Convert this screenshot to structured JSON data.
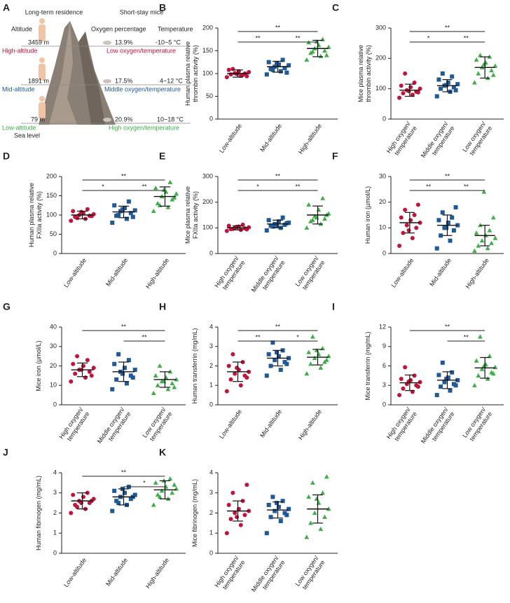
{
  "figure_a": {
    "label": "A",
    "headers": {
      "human": "Long-term residence",
      "mice": "Short-stay mice",
      "altitude": "Altitude",
      "oxygen": "Oxygen percentage",
      "temperature": "Temperature"
    },
    "rows": [
      {
        "altitude": "3459 m",
        "name": "High-altitude",
        "oxygen": "13.9%",
        "temperature": "-10~5 °C",
        "condition": "Low oxygen/temperature"
      },
      {
        "altitude": "1891 m",
        "name": "Mid-altitude",
        "oxygen": "17.5%",
        "temperature": "4~12 °C",
        "condition": "Middle oxygen/temperature"
      },
      {
        "altitude": "79 m",
        "name": "Low-altitude",
        "oxygen": "20.9%",
        "temperature": "10~18 °C",
        "condition": "High oxygen/temperature"
      }
    ],
    "sea_level": "Sea level"
  },
  "chart_data": [
    {
      "type": "dotplot",
      "label": "B",
      "ylabel": [
        "Human plasma relative",
        "thrombin activity (%)"
      ],
      "categories": [
        "Low-altitude",
        "Mid-altitude",
        "High-altitude"
      ],
      "ylim": [
        0,
        200
      ],
      "yticks": [
        0,
        50,
        100,
        150,
        200
      ],
      "groups": [
        {
          "color": "#c0143c",
          "marker": "circle",
          "values": [
            92,
            95,
            98,
            100,
            101,
            103,
            105,
            108,
            97,
            110,
            94,
            99
          ],
          "mean": 100,
          "sd": 8
        },
        {
          "color": "#1f5a96",
          "marker": "square",
          "values": [
            98,
            105,
            110,
            112,
            115,
            118,
            120,
            125,
            130,
            108,
            102,
            122
          ],
          "mean": 115,
          "sd": 12
        },
        {
          "color": "#3fae49",
          "marker": "triangle",
          "values": [
            130,
            138,
            145,
            150,
            155,
            158,
            162,
            168,
            175,
            148,
            140,
            170
          ],
          "mean": 155,
          "sd": 18
        }
      ],
      "significance": [
        {
          "from": 0,
          "to": 2,
          "label": "**"
        },
        {
          "from": 0,
          "to": 1,
          "label": "**"
        },
        {
          "from": 1,
          "to": 2,
          "label": "**"
        }
      ]
    },
    {
      "type": "dotplot",
      "label": "C",
      "ylabel": [
        "Mice plasma relative",
        "thrombin activity (%)"
      ],
      "categories": [
        [
          "High oxygen/",
          "temperature"
        ],
        [
          "Middle oxygen/",
          "temperature"
        ],
        [
          "Low oxygen/",
          "temperature"
        ]
      ],
      "ylim": [
        0,
        300
      ],
      "yticks": [
        0,
        100,
        200,
        300
      ],
      "groups": [
        {
          "color": "#c0143c",
          "marker": "circle",
          "values": [
            70,
            80,
            85,
            90,
            95,
            100,
            105,
            110,
            120,
            150,
            88,
            92
          ],
          "mean": 95,
          "sd": 20
        },
        {
          "color": "#1f5a96",
          "marker": "square",
          "values": [
            75,
            90,
            100,
            105,
            110,
            115,
            120,
            130,
            140,
            150,
            95,
            112
          ],
          "mean": 110,
          "sd": 20
        },
        {
          "color": "#3fae49",
          "marker": "triangle",
          "values": [
            120,
            135,
            150,
            160,
            170,
            175,
            185,
            195,
            205,
            210,
            145,
            180
          ],
          "mean": 170,
          "sd": 35
        }
      ],
      "significance": [
        {
          "from": 0,
          "to": 2,
          "label": "**"
        },
        {
          "from": 0,
          "to": 1,
          "label": "*"
        },
        {
          "from": 1,
          "to": 2,
          "label": "**"
        }
      ]
    },
    {
      "type": "dotplot",
      "label": "D",
      "ylabel": [
        "Human plasma relative",
        "FXIIa activity (%)"
      ],
      "categories": [
        "Low-altitude",
        "Mid-altitude",
        "High-altitude"
      ],
      "ylim": [
        0,
        200
      ],
      "yticks": [
        0,
        50,
        100,
        150,
        200
      ],
      "groups": [
        {
          "color": "#c0143c",
          "marker": "circle",
          "values": [
            85,
            90,
            95,
            98,
            100,
            102,
            105,
            110,
            115,
            92,
            97,
            108
          ],
          "mean": 100,
          "sd": 10
        },
        {
          "color": "#1f5a96",
          "marker": "square",
          "values": [
            80,
            90,
            98,
            105,
            110,
            112,
            118,
            125,
            135,
            100,
            95,
            115
          ],
          "mean": 108,
          "sd": 15
        },
        {
          "color": "#3fae49",
          "marker": "triangle",
          "values": [
            110,
            120,
            130,
            140,
            148,
            155,
            160,
            170,
            185,
            125,
            145,
            165
          ],
          "mean": 148,
          "sd": 25
        }
      ],
      "significance": [
        {
          "from": 0,
          "to": 2,
          "label": "**"
        },
        {
          "from": 0,
          "to": 1,
          "label": "*"
        },
        {
          "from": 1,
          "to": 2,
          "label": "**"
        }
      ]
    },
    {
      "type": "dotplot",
      "label": "E",
      "ylabel": [
        "Mice plasma relative",
        "FXIIa activity (%)"
      ],
      "categories": [
        [
          "High oxygen/",
          "temperature"
        ],
        [
          "Middle oxygen/",
          "temperature"
        ],
        [
          "Low oxygen/",
          "temperature"
        ]
      ],
      "ylim": [
        0,
        300
      ],
      "yticks": [
        0,
        100,
        200,
        300
      ],
      "groups": [
        {
          "color": "#c0143c",
          "marker": "circle",
          "values": [
            88,
            92,
            95,
            98,
            100,
            102,
            105,
            108,
            112,
            96,
            94,
            104
          ],
          "mean": 100,
          "sd": 8
        },
        {
          "color": "#1f5a96",
          "marker": "square",
          "values": [
            90,
            100,
            108,
            112,
            115,
            120,
            125,
            130,
            140,
            105,
            118,
            110
          ],
          "mean": 115,
          "sd": 15
        },
        {
          "color": "#3fae49",
          "marker": "triangle",
          "values": [
            100,
            115,
            125,
            135,
            145,
            155,
            170,
            190,
            215,
            130,
            150,
            140
          ],
          "mean": 150,
          "sd": 35
        }
      ],
      "significance": [
        {
          "from": 0,
          "to": 2,
          "label": "**"
        },
        {
          "from": 0,
          "to": 1,
          "label": "*"
        },
        {
          "from": 1,
          "to": 2,
          "label": "**"
        }
      ]
    },
    {
      "type": "dotplot",
      "label": "F",
      "ylabel": [
        "Human iron (µmol/L)"
      ],
      "categories": [
        "Low-altitude",
        "Mid-altitude",
        "High-altitude"
      ],
      "ylim": [
        0,
        30
      ],
      "yticks": [
        0,
        10,
        20,
        30
      ],
      "groups": [
        {
          "color": "#c0143c",
          "marker": "circle",
          "values": [
            3,
            6,
            8,
            10,
            11,
            12,
            13,
            14,
            15,
            17,
            19,
            9
          ],
          "mean": 12,
          "sd": 4
        },
        {
          "color": "#1f5a96",
          "marker": "square",
          "values": [
            2,
            5,
            7,
            9,
            10,
            11,
            12,
            13,
            14,
            16,
            18,
            10
          ],
          "mean": 11,
          "sd": 4
        },
        {
          "color": "#3fae49",
          "marker": "triangle",
          "values": [
            1,
            2,
            3,
            4,
            5,
            6,
            7,
            8,
            9,
            11,
            14,
            24
          ],
          "mean": 7,
          "sd": 4
        }
      ],
      "significance": [
        {
          "from": 0,
          "to": 2,
          "label": "**"
        },
        {
          "from": 0,
          "to": 1,
          "label": "**"
        },
        {
          "from": 1,
          "to": 2,
          "label": "**"
        }
      ]
    },
    {
      "type": "dotplot",
      "label": "G",
      "ylabel": [
        "Mice iron (µmol/L)"
      ],
      "categories": [
        [
          "High oxygen/",
          "temperature"
        ],
        [
          "Middle oxygen/",
          "temperature"
        ],
        [
          "Low oxygen/",
          "temperature"
        ]
      ],
      "ylim": [
        0,
        40
      ],
      "yticks": [
        0,
        10,
        20,
        30,
        40
      ],
      "groups": [
        {
          "color": "#c0143c",
          "marker": "circle",
          "values": [
            12,
            14,
            16,
            17,
            18,
            19,
            20,
            21,
            23,
            25,
            15,
            18
          ],
          "mean": 18,
          "sd": 3.5
        },
        {
          "color": "#1f5a96",
          "marker": "square",
          "values": [
            8,
            11,
            13,
            15,
            17,
            18,
            19,
            21,
            23,
            26,
            14,
            16
          ],
          "mean": 17,
          "sd": 5
        },
        {
          "color": "#3fae49",
          "marker": "triangle",
          "values": [
            6,
            8,
            10,
            11,
            12,
            13,
            14,
            15,
            17,
            20,
            9,
            12
          ],
          "mean": 13,
          "sd": 4
        }
      ],
      "significance": [
        {
          "from": 0,
          "to": 2,
          "label": "**"
        },
        {
          "from": 1,
          "to": 2,
          "label": "**"
        }
      ]
    },
    {
      "type": "dotplot",
      "label": "H",
      "ylabel": [
        "Human transferrin (mg/mL)"
      ],
      "categories": [
        "Low-altitude",
        "Mid-altitude",
        "High-altitude"
      ],
      "ylim": [
        0,
        4
      ],
      "yticks": [
        0,
        1,
        2,
        3,
        4
      ],
      "groups": [
        {
          "color": "#c0143c",
          "marker": "circle",
          "values": [
            0.7,
            1.0,
            1.3,
            1.5,
            1.6,
            1.7,
            1.8,
            2.0,
            2.2,
            2.6,
            1.4,
            1.9
          ],
          "mean": 1.7,
          "sd": 0.5
        },
        {
          "color": "#1f5a96",
          "marker": "square",
          "values": [
            1.5,
            1.8,
            2.0,
            2.2,
            2.3,
            2.4,
            2.5,
            2.6,
            2.8,
            3.2,
            2.1,
            2.7
          ],
          "mean": 2.4,
          "sd": 0.4
        },
        {
          "color": "#3fae49",
          "marker": "triangle",
          "values": [
            1.6,
            1.9,
            2.1,
            2.2,
            2.4,
            2.5,
            2.6,
            2.7,
            2.9,
            3.5,
            2.3,
            2.8
          ],
          "mean": 2.45,
          "sd": 0.4
        }
      ],
      "significance": [
        {
          "from": 0,
          "to": 2,
          "label": "**"
        },
        {
          "from": 0,
          "to": 1,
          "label": "**"
        },
        {
          "from": 1,
          "to": 2,
          "label": "*"
        }
      ]
    },
    {
      "type": "dotplot",
      "label": "I",
      "ylabel": [
        "Mice transferrin (mg/mL)"
      ],
      "categories": [
        [
          "High oxygen/",
          "temperature"
        ],
        [
          "Middle oxygen/",
          "temperature"
        ],
        [
          "Low oxygen/",
          "temperature"
        ]
      ],
      "ylim": [
        0,
        12
      ],
      "yticks": [
        0,
        3,
        6,
        9,
        12
      ],
      "groups": [
        {
          "color": "#c0143c",
          "marker": "circle",
          "values": [
            1.5,
            2.0,
            2.5,
            3.0,
            3.2,
            3.5,
            3.8,
            4.0,
            4.5,
            5.8,
            2.8,
            3.6
          ],
          "mean": 3.4,
          "sd": 1.2
        },
        {
          "color": "#1f5a96",
          "marker": "square",
          "values": [
            1.5,
            2.2,
            2.8,
            3.2,
            3.5,
            3.8,
            4.2,
            4.6,
            5.0,
            6.5,
            3.0,
            4.0
          ],
          "mean": 3.8,
          "sd": 1.3
        },
        {
          "color": "#3fae49",
          "marker": "triangle",
          "values": [
            3.0,
            4.0,
            4.5,
            5.0,
            5.5,
            5.8,
            6.2,
            6.8,
            7.5,
            10.5,
            4.8,
            6.0
          ],
          "mean": 5.7,
          "sd": 1.6
        }
      ],
      "significance": [
        {
          "from": 0,
          "to": 2,
          "label": "**"
        },
        {
          "from": 1,
          "to": 2,
          "label": "**"
        }
      ]
    },
    {
      "type": "dotplot",
      "label": "J",
      "ylabel": [
        "Human fibrinogen (mg/mL)"
      ],
      "categories": [
        "Low-altitude",
        "Mid-altitude",
        "High-altitude"
      ],
      "ylim": [
        0,
        4
      ],
      "yticks": [
        0,
        1,
        2,
        3,
        4
      ],
      "groups": [
        {
          "color": "#c0143c",
          "marker": "circle",
          "values": [
            2.0,
            2.2,
            2.4,
            2.5,
            2.6,
            2.7,
            2.8,
            2.9,
            3.0,
            2.3,
            2.6,
            2.5
          ],
          "mean": 2.6,
          "sd": 0.4
        },
        {
          "color": "#1f5a96",
          "marker": "square",
          "values": [
            2.1,
            2.4,
            2.6,
            2.7,
            2.8,
            2.9,
            3.0,
            3.1,
            3.3,
            2.5,
            2.8,
            3.2
          ],
          "mean": 2.8,
          "sd": 0.4
        },
        {
          "color": "#3fae49",
          "marker": "triangle",
          "values": [
            2.4,
            2.7,
            2.9,
            3.0,
            3.1,
            3.2,
            3.3,
            3.5,
            3.7,
            2.8,
            3.4,
            3.6
          ],
          "mean": 3.15,
          "sd": 0.45
        }
      ],
      "significance": [
        {
          "from": 0,
          "to": 2,
          "label": "**"
        },
        {
          "from": 1,
          "to": 2,
          "label": "*"
        }
      ]
    },
    {
      "type": "dotplot",
      "label": "K",
      "ylabel": [
        "Mice fibrinogen (mg/mL)"
      ],
      "categories": [
        [
          "High oxygen/",
          "temperature"
        ],
        [
          "Middle oxygen/",
          "temperature"
        ],
        [
          "Low oxygen/",
          "temperature"
        ]
      ],
      "ylim": [
        0,
        4
      ],
      "yticks": [
        0,
        1,
        2,
        3,
        4
      ],
      "groups": [
        {
          "color": "#c0143c",
          "marker": "circle",
          "values": [
            1.0,
            1.4,
            1.7,
            1.9,
            2.0,
            2.1,
            2.2,
            2.4,
            2.6,
            3.0,
            3.4,
            1.8
          ],
          "mean": 2.1,
          "sd": 0.5
        },
        {
          "color": "#1f5a96",
          "marker": "square",
          "values": [
            1.0,
            1.6,
            1.8,
            2.0,
            2.1,
            2.2,
            2.3,
            2.4,
            2.6,
            2.8,
            1.9,
            2.5
          ],
          "mean": 2.15,
          "sd": 0.4
        },
        {
          "color": "#3fae49",
          "marker": "triangle",
          "values": [
            0.8,
            1.2,
            1.5,
            1.8,
            2.0,
            2.2,
            2.5,
            2.8,
            3.0,
            3.5,
            3.8,
            2.7
          ],
          "mean": 2.2,
          "sd": 0.7
        }
      ],
      "significance": []
    }
  ]
}
